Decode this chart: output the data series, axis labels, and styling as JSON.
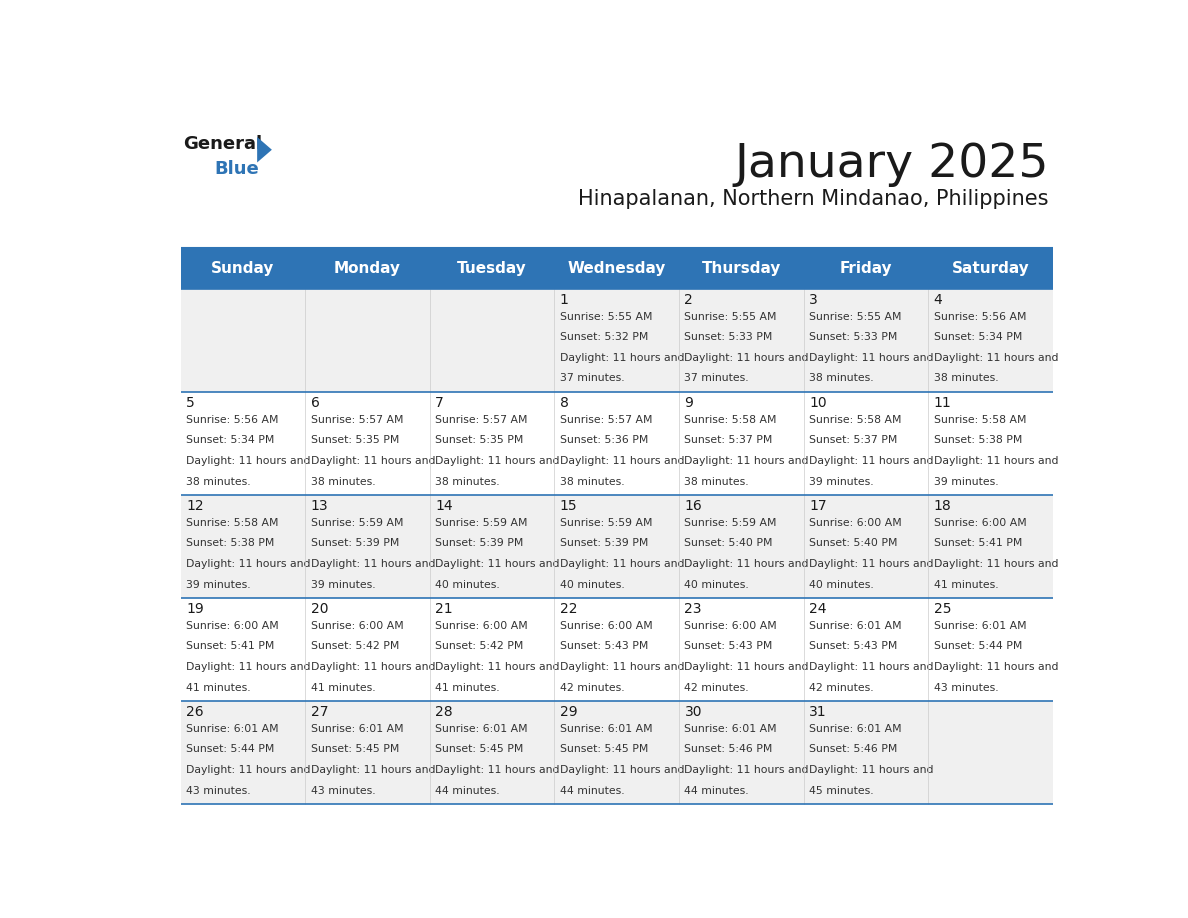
{
  "title": "January 2025",
  "subtitle": "Hinapalanan, Northern Mindanao, Philippines",
  "header_bg_color": "#2e74b5",
  "header_text_color": "#ffffff",
  "row_bg_even": "#f0f0f0",
  "row_bg_odd": "#ffffff",
  "border_color": "#2e74b5",
  "days_of_week": [
    "Sunday",
    "Monday",
    "Tuesday",
    "Wednesday",
    "Thursday",
    "Friday",
    "Saturday"
  ],
  "title_color": "#1a1a1a",
  "subtitle_color": "#1a1a1a",
  "day_number_color": "#1a1a1a",
  "cell_text_color": "#333333",
  "logo_general_color": "#1a1a1a",
  "logo_blue_color": "#2e74b5",
  "calendar_data": [
    [
      {
        "day": "",
        "sunrise": "",
        "sunset": "",
        "daylight": ""
      },
      {
        "day": "",
        "sunrise": "",
        "sunset": "",
        "daylight": ""
      },
      {
        "day": "",
        "sunrise": "",
        "sunset": "",
        "daylight": ""
      },
      {
        "day": "1",
        "sunrise": "5:55 AM",
        "sunset": "5:32 PM",
        "daylight": "11 hours and 37 minutes."
      },
      {
        "day": "2",
        "sunrise": "5:55 AM",
        "sunset": "5:33 PM",
        "daylight": "11 hours and 37 minutes."
      },
      {
        "day": "3",
        "sunrise": "5:55 AM",
        "sunset": "5:33 PM",
        "daylight": "11 hours and 38 minutes."
      },
      {
        "day": "4",
        "sunrise": "5:56 AM",
        "sunset": "5:34 PM",
        "daylight": "11 hours and 38 minutes."
      }
    ],
    [
      {
        "day": "5",
        "sunrise": "5:56 AM",
        "sunset": "5:34 PM",
        "daylight": "11 hours and 38 minutes."
      },
      {
        "day": "6",
        "sunrise": "5:57 AM",
        "sunset": "5:35 PM",
        "daylight": "11 hours and 38 minutes."
      },
      {
        "day": "7",
        "sunrise": "5:57 AM",
        "sunset": "5:35 PM",
        "daylight": "11 hours and 38 minutes."
      },
      {
        "day": "8",
        "sunrise": "5:57 AM",
        "sunset": "5:36 PM",
        "daylight": "11 hours and 38 minutes."
      },
      {
        "day": "9",
        "sunrise": "5:58 AM",
        "sunset": "5:37 PM",
        "daylight": "11 hours and 38 minutes."
      },
      {
        "day": "10",
        "sunrise": "5:58 AM",
        "sunset": "5:37 PM",
        "daylight": "11 hours and 39 minutes."
      },
      {
        "day": "11",
        "sunrise": "5:58 AM",
        "sunset": "5:38 PM",
        "daylight": "11 hours and 39 minutes."
      }
    ],
    [
      {
        "day": "12",
        "sunrise": "5:58 AM",
        "sunset": "5:38 PM",
        "daylight": "11 hours and 39 minutes."
      },
      {
        "day": "13",
        "sunrise": "5:59 AM",
        "sunset": "5:39 PM",
        "daylight": "11 hours and 39 minutes."
      },
      {
        "day": "14",
        "sunrise": "5:59 AM",
        "sunset": "5:39 PM",
        "daylight": "11 hours and 40 minutes."
      },
      {
        "day": "15",
        "sunrise": "5:59 AM",
        "sunset": "5:39 PM",
        "daylight": "11 hours and 40 minutes."
      },
      {
        "day": "16",
        "sunrise": "5:59 AM",
        "sunset": "5:40 PM",
        "daylight": "11 hours and 40 minutes."
      },
      {
        "day": "17",
        "sunrise": "6:00 AM",
        "sunset": "5:40 PM",
        "daylight": "11 hours and 40 minutes."
      },
      {
        "day": "18",
        "sunrise": "6:00 AM",
        "sunset": "5:41 PM",
        "daylight": "11 hours and 41 minutes."
      }
    ],
    [
      {
        "day": "19",
        "sunrise": "6:00 AM",
        "sunset": "5:41 PM",
        "daylight": "11 hours and 41 minutes."
      },
      {
        "day": "20",
        "sunrise": "6:00 AM",
        "sunset": "5:42 PM",
        "daylight": "11 hours and 41 minutes."
      },
      {
        "day": "21",
        "sunrise": "6:00 AM",
        "sunset": "5:42 PM",
        "daylight": "11 hours and 41 minutes."
      },
      {
        "day": "22",
        "sunrise": "6:00 AM",
        "sunset": "5:43 PM",
        "daylight": "11 hours and 42 minutes."
      },
      {
        "day": "23",
        "sunrise": "6:00 AM",
        "sunset": "5:43 PM",
        "daylight": "11 hours and 42 minutes."
      },
      {
        "day": "24",
        "sunrise": "6:01 AM",
        "sunset": "5:43 PM",
        "daylight": "11 hours and 42 minutes."
      },
      {
        "day": "25",
        "sunrise": "6:01 AM",
        "sunset": "5:44 PM",
        "daylight": "11 hours and 43 minutes."
      }
    ],
    [
      {
        "day": "26",
        "sunrise": "6:01 AM",
        "sunset": "5:44 PM",
        "daylight": "11 hours and 43 minutes."
      },
      {
        "day": "27",
        "sunrise": "6:01 AM",
        "sunset": "5:45 PM",
        "daylight": "11 hours and 43 minutes."
      },
      {
        "day": "28",
        "sunrise": "6:01 AM",
        "sunset": "5:45 PM",
        "daylight": "11 hours and 44 minutes."
      },
      {
        "day": "29",
        "sunrise": "6:01 AM",
        "sunset": "5:45 PM",
        "daylight": "11 hours and 44 minutes."
      },
      {
        "day": "30",
        "sunrise": "6:01 AM",
        "sunset": "5:46 PM",
        "daylight": "11 hours and 44 minutes."
      },
      {
        "day": "31",
        "sunrise": "6:01 AM",
        "sunset": "5:46 PM",
        "daylight": "11 hours and 45 minutes."
      },
      {
        "day": "",
        "sunrise": "",
        "sunset": "",
        "daylight": ""
      }
    ]
  ]
}
